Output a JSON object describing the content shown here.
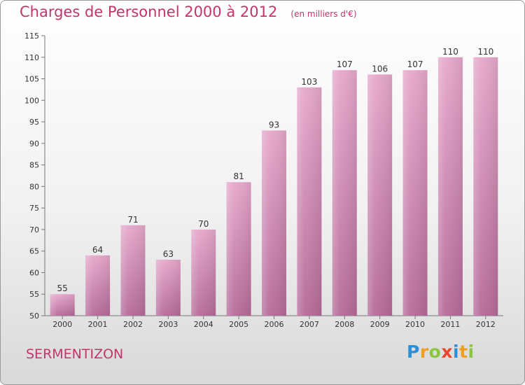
{
  "chart_data": {
    "type": "bar",
    "title": "Charges de Personnel 2000 à 2012",
    "unit": "(en milliers d'€)",
    "categories": [
      "2000",
      "2001",
      "2002",
      "2003",
      "2004",
      "2005",
      "2006",
      "2007",
      "2008",
      "2009",
      "2010",
      "2011",
      "2012"
    ],
    "values": [
      55,
      64,
      71,
      63,
      70,
      81,
      93,
      103,
      107,
      106,
      107,
      110,
      110
    ],
    "data_labels": [
      "55",
      "64",
      "71",
      "63",
      "70",
      "81",
      "93",
      "103",
      "107",
      "106",
      "107",
      "110",
      "110"
    ],
    "yticks": [
      "50",
      "55",
      "60",
      "65",
      "70",
      "75",
      "80",
      "85",
      "90",
      "95",
      "100",
      "105",
      "110",
      "115"
    ],
    "ylim": [
      50,
      115
    ],
    "grid": false,
    "bar_color_top": "#e6a8cc",
    "bar_color_bottom": "#b56b98",
    "text_color": "#c4346b"
  },
  "footer": {
    "commune": "SERMENTIZON",
    "brand": {
      "letters": [
        "P",
        "r",
        "o",
        "x",
        "i",
        "t",
        "i"
      ],
      "colors": [
        "#2d8fd4",
        "#f0a020",
        "#8cc63f",
        "#e8462f",
        "#2d8fd4",
        "#f0a020",
        "#8cc63f"
      ]
    }
  }
}
